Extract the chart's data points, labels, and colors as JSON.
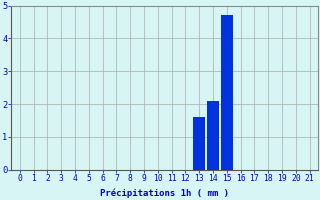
{
  "hours": [
    0,
    1,
    2,
    3,
    4,
    5,
    6,
    7,
    8,
    9,
    10,
    11,
    12,
    13,
    14,
    15,
    16,
    17,
    18,
    19,
    20,
    21
  ],
  "values": [
    0,
    0,
    0,
    0,
    0,
    0,
    0,
    0,
    0,
    0,
    0,
    0,
    0,
    1.6,
    2.1,
    4.7,
    0,
    0,
    0,
    0,
    0,
    0
  ],
  "bar_color": "#0033dd",
  "bg_color": "#d8f5f5",
  "grid_color": "#aaaaaa",
  "xlabel": "Précipitations 1h ( mm )",
  "xlabel_color": "#0000cc",
  "tick_color": "#0000cc",
  "ylim": [
    0,
    5
  ],
  "yticks": [
    0,
    1,
    2,
    3,
    4,
    5
  ],
  "bar_width": 0.85,
  "tick_fontsize": 5.8,
  "ylabel_fontsize": 6.5
}
